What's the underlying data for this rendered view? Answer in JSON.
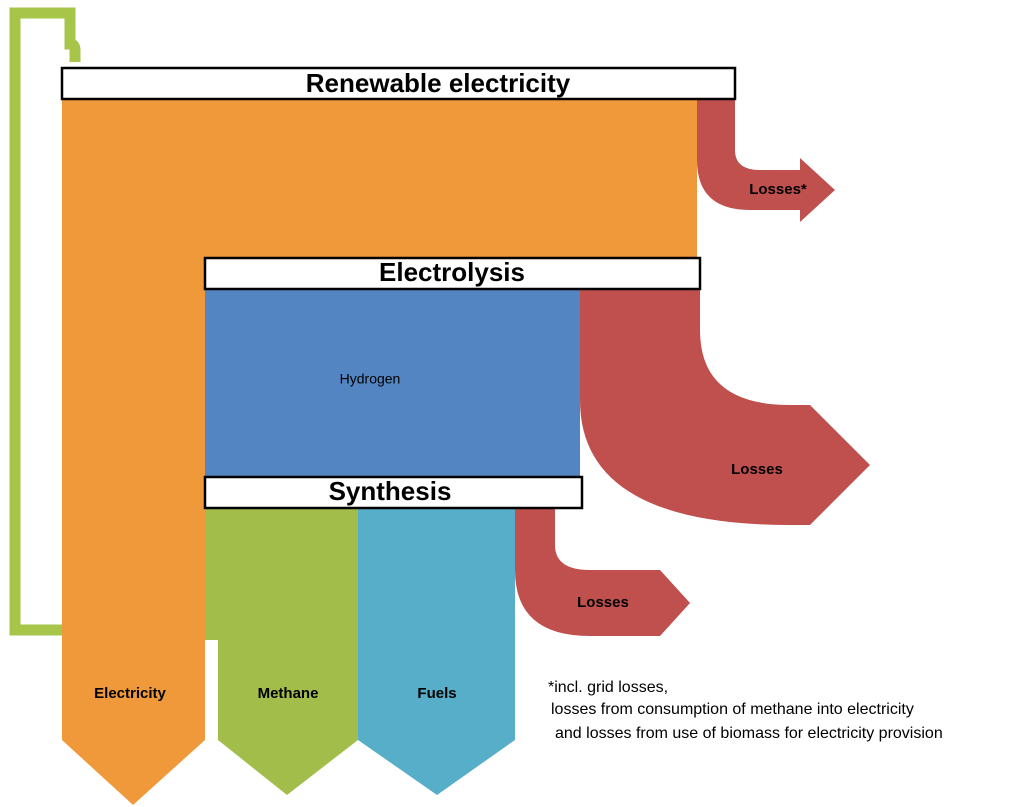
{
  "nodes": [
    "Renewable electricity",
    "Electrolysis",
    "Synthesis"
  ],
  "flows": [
    "Hydrogen",
    "Losses*",
    "Losses",
    "Losses"
  ],
  "outputs": [
    "Electricity",
    "Methane",
    "Fuels"
  ],
  "footnote": [
    "*incl. grid losses,",
    "losses from consumption of methane into electricity",
    "and losses from use of biomass for electricity provision"
  ]
}
